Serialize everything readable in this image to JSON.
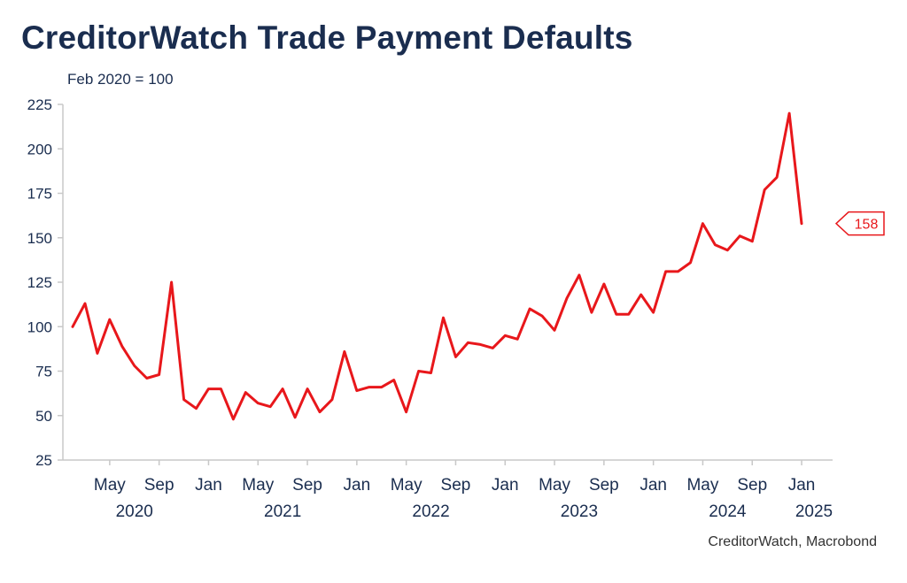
{
  "title": "CreditorWatch Trade Payment Defaults",
  "subtitle": "Feb 2020 = 100",
  "source": "CreditorWatch, Macrobond",
  "colors": {
    "line": "#e8171b",
    "text": "#1a2d4f",
    "axis": "#c8c8c8"
  },
  "chart_data": {
    "type": "line",
    "title": "CreditorWatch Trade Payment Defaults",
    "subtitle": "Feb 2020 = 100",
    "ylim": [
      25,
      225
    ],
    "yticks": [
      25,
      50,
      75,
      100,
      125,
      150,
      175,
      200,
      225
    ],
    "xlim": [
      "2020-01",
      "2025-03"
    ],
    "month_ticks": [
      {
        "label": "May",
        "date": "2020-05"
      },
      {
        "label": "Sep",
        "date": "2020-09"
      },
      {
        "label": "Jan",
        "date": "2021-01"
      },
      {
        "label": "May",
        "date": "2021-05"
      },
      {
        "label": "Sep",
        "date": "2021-09"
      },
      {
        "label": "Jan",
        "date": "2022-01"
      },
      {
        "label": "May",
        "date": "2022-05"
      },
      {
        "label": "Sep",
        "date": "2022-09"
      },
      {
        "label": "Jan",
        "date": "2023-01"
      },
      {
        "label": "May",
        "date": "2023-05"
      },
      {
        "label": "Sep",
        "date": "2023-09"
      },
      {
        "label": "Jan",
        "date": "2024-01"
      },
      {
        "label": "May",
        "date": "2024-05"
      },
      {
        "label": "Sep",
        "date": "2024-09"
      },
      {
        "label": "Jan",
        "date": "2025-01"
      }
    ],
    "year_labels": [
      {
        "label": "2020",
        "date": "2020-07"
      },
      {
        "label": "2021",
        "date": "2021-07"
      },
      {
        "label": "2022",
        "date": "2022-07"
      },
      {
        "label": "2023",
        "date": "2023-07"
      },
      {
        "label": "2024",
        "date": "2024-07"
      },
      {
        "label": "2025",
        "date": "2025-02"
      }
    ],
    "last_value_label": "158",
    "grid": false,
    "series": [
      {
        "color": "#e8171b",
        "x": [
          "2020-02",
          "2020-03",
          "2020-04",
          "2020-05",
          "2020-06",
          "2020-07",
          "2020-08",
          "2020-09",
          "2020-10",
          "2020-11",
          "2020-12",
          "2021-01",
          "2021-02",
          "2021-03",
          "2021-04",
          "2021-05",
          "2021-06",
          "2021-07",
          "2021-08",
          "2021-09",
          "2021-10",
          "2021-11",
          "2021-12",
          "2022-01",
          "2022-02",
          "2022-03",
          "2022-04",
          "2022-05",
          "2022-06",
          "2022-07",
          "2022-08",
          "2022-09",
          "2022-10",
          "2022-11",
          "2022-12",
          "2023-01",
          "2023-02",
          "2023-03",
          "2023-04",
          "2023-05",
          "2023-06",
          "2023-07",
          "2023-08",
          "2023-09",
          "2023-10",
          "2023-11",
          "2023-12",
          "2024-01",
          "2024-02",
          "2024-03",
          "2024-04",
          "2024-05",
          "2024-06",
          "2024-07",
          "2024-08",
          "2024-09",
          "2024-10",
          "2024-11",
          "2024-12",
          "2025-01"
        ],
        "values": [
          100,
          113,
          85,
          104,
          89,
          78,
          71,
          73,
          125,
          59,
          54,
          65,
          65,
          48,
          63,
          57,
          55,
          65,
          49,
          65,
          52,
          59,
          86,
          64,
          66,
          66,
          70,
          52,
          75,
          74,
          105,
          83,
          91,
          90,
          88,
          95,
          93,
          110,
          106,
          98,
          116,
          129,
          108,
          124,
          107,
          107,
          118,
          108,
          131,
          131,
          136,
          158,
          146,
          143,
          151,
          148,
          177,
          184,
          220,
          158
        ]
      }
    ]
  }
}
